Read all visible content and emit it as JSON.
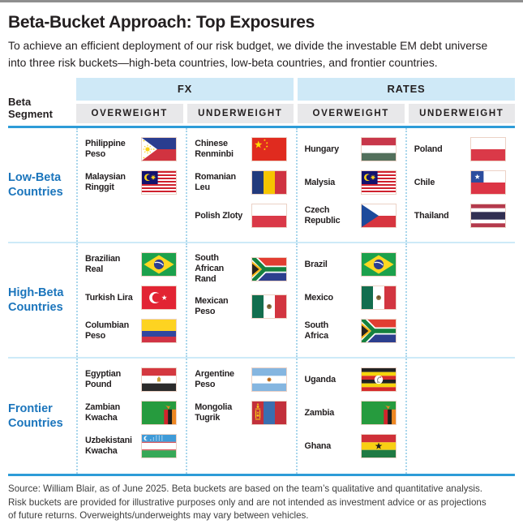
{
  "page": {
    "title": "Beta-Bucket Approach: Top Exposures",
    "subtitle": "To achieve an efficient deployment of our risk budget, we divide the investable EM debt universe\ninto three risk buckets—high-beta countries, low-beta countries, and frontier countries.",
    "source": "Source: William Blair, as of June 2025. Beta buckets are based on the team’s qualitative and quantitative analysis.\nRisk buckets are provided for illustrative purposes only and are not intended as investment advice or as projections\nof future returns. Overweights/underweights may vary between vehicles."
  },
  "colors": {
    "accent_blue": "#2d9cd8",
    "group_header_fill": "#cfe9f7",
    "subheader_fill": "#e8e8ea",
    "segment_label_text": "#1b75bc",
    "row_separator": "#cdeaf8",
    "dotted_separator": "#a9d6ec",
    "top_border_gray": "#8f8f8f"
  },
  "table": {
    "row_header": "Beta\nSegment",
    "groups": [
      {
        "label": "FX"
      },
      {
        "label": "RATES"
      }
    ],
    "subheaders": [
      "OVERWEIGHT",
      "UNDERWEIGHT",
      "OVERWEIGHT",
      "UNDERWEIGHT"
    ],
    "rows": [
      {
        "segment": "Low-Beta\nCountries",
        "cells": [
          [
            {
              "name": "Philippine\nPeso",
              "flag": "philippines-flag"
            },
            {
              "name": "Malaysian\nRinggit",
              "flag": "malaysia-flag"
            }
          ],
          [
            {
              "name": "Chinese\nRenminbi",
              "flag": "china-flag"
            },
            {
              "name": "Romanian Leu",
              "flag": "romania-flag"
            },
            {
              "name": "Polish Zloty",
              "flag": "poland-flag"
            }
          ],
          [
            {
              "name": "Hungary",
              "flag": "hungary-flag"
            },
            {
              "name": "Malysia",
              "flag": "malaysia-flag"
            },
            {
              "name": "Czech\nRepublic",
              "flag": "czech-republic-flag"
            }
          ],
          [
            {
              "name": "Poland",
              "flag": "poland-flag"
            },
            {
              "name": "Chile",
              "flag": "chile-flag"
            },
            {
              "name": "Thailand",
              "flag": "thailand-flag"
            }
          ]
        ]
      },
      {
        "segment": "High-Beta\nCountries",
        "cells": [
          [
            {
              "name": "Brazilian Real",
              "flag": "brazil-flag"
            },
            {
              "name": "Turkish Lira",
              "flag": "turkey-flag"
            },
            {
              "name": "Columbian\nPeso",
              "flag": "colombia-flag"
            }
          ],
          [
            {
              "name": "South African\nRand",
              "flag": "south-africa-flag"
            },
            {
              "name": "Mexican Peso",
              "flag": "mexico-flag"
            }
          ],
          [
            {
              "name": "Brazil",
              "flag": "brazil-flag"
            },
            {
              "name": "Mexico",
              "flag": "mexico-flag"
            },
            {
              "name": "South\nAfrica",
              "flag": "south-africa-flag"
            }
          ],
          []
        ]
      },
      {
        "segment": "Frontier\nCountries",
        "cells": [
          [
            {
              "name": "Egyptian\nPound",
              "flag": "egypt-flag"
            },
            {
              "name": "Zambian\nKwacha",
              "flag": "zambia-flag"
            },
            {
              "name": "Uzbekistani\nKwacha",
              "flag": "uzbekistan-flag"
            }
          ],
          [
            {
              "name": "Argentine\nPeso",
              "flag": "argentina-flag"
            },
            {
              "name": "Mongolia\nTugrik",
              "flag": "mongolia-flag"
            }
          ],
          [
            {
              "name": "Uganda",
              "flag": "uganda-flag"
            },
            {
              "name": "Zambia",
              "flag": "zambia-flag"
            },
            {
              "name": "Ghana",
              "flag": "ghana-flag"
            }
          ],
          []
        ]
      }
    ]
  }
}
